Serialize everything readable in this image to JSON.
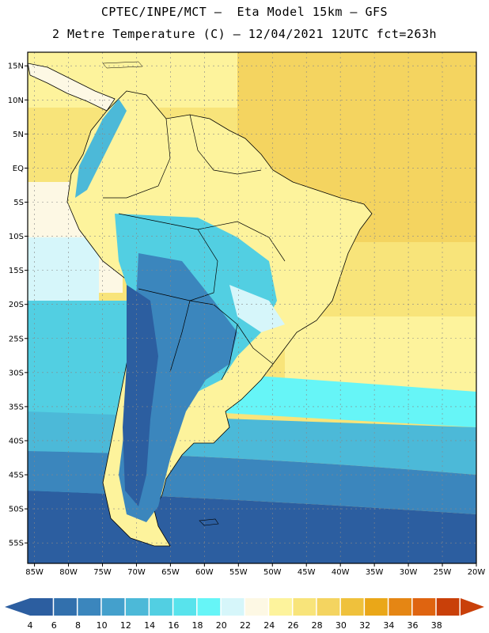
{
  "header": {
    "line1": "CPTEC/INPE/MCT –  Eta Model 15km – GFS",
    "line2": "2 Metre Temperature (C) – 12/04/2021 12UTC fct=263h"
  },
  "map": {
    "lat_labels": [
      "15N",
      "10N",
      "5N",
      "EQ",
      "5S",
      "10S",
      "15S",
      "20S",
      "25S",
      "30S",
      "35S",
      "40S",
      "45S",
      "50S",
      "55S"
    ],
    "lat_values": [
      15,
      10,
      5,
      0,
      -5,
      -10,
      -15,
      -20,
      -25,
      -30,
      -35,
      -40,
      -45,
      -50,
      -55
    ],
    "lon_labels": [
      "85W",
      "80W",
      "75W",
      "70W",
      "65W",
      "60W",
      "55W",
      "50W",
      "45W",
      "40W",
      "35W",
      "30W",
      "25W",
      "20W"
    ],
    "lon_values": [
      -85,
      -80,
      -75,
      -70,
      -65,
      -60,
      -55,
      -50,
      -45,
      -40,
      -35,
      -30,
      -25,
      -20
    ],
    "lat_range": [
      -58,
      17
    ],
    "lon_range": [
      -86,
      -20
    ]
  },
  "colorbar": {
    "labels": [
      "4",
      "6",
      "8",
      "10",
      "12",
      "14",
      "16",
      "18",
      "20",
      "22",
      "24",
      "26",
      "28",
      "30",
      "32",
      "34",
      "36",
      "38"
    ],
    "colors": [
      "#2c5ea0",
      "#3270ad",
      "#3b86bd",
      "#44a0cc",
      "#4cb9d8",
      "#52cfe2",
      "#58e3ec",
      "#66f5f7",
      "#d6f6fa",
      "#fdf8e4",
      "#fdf39c",
      "#f8e47a",
      "#f4d460",
      "#efc13c",
      "#eaa718",
      "#e58614",
      "#df6410",
      "#c94009"
    ],
    "low_end_color": "#2c5ea0",
    "high_end_color": "#c94009"
  }
}
